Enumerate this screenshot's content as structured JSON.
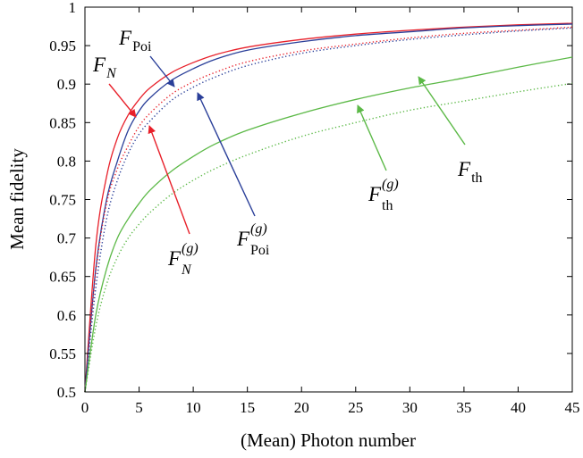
{
  "chart_data": {
    "type": "line",
    "xlabel": "(Mean) Photon number",
    "ylabel": "Mean fidelity",
    "xlim": [
      0,
      45
    ],
    "ylim": [
      0.5,
      1.0
    ],
    "xticks": [
      0,
      5,
      10,
      15,
      20,
      25,
      30,
      35,
      40,
      45
    ],
    "yticks": [
      0.5,
      0.55,
      0.6,
      0.65,
      0.7,
      0.75,
      0.8,
      0.85,
      0.9,
      0.95,
      1.0
    ],
    "xtick_labels": [
      "0",
      "5",
      "10",
      "15",
      "20",
      "25",
      "30",
      "35",
      "40",
      "45"
    ],
    "ytick_labels": [
      "0.5",
      "0.55",
      "0.6",
      "0.65",
      "0.7",
      "0.75",
      "0.8",
      "0.85",
      "0.9",
      "0.95",
      "1"
    ],
    "grid": false,
    "x": [
      0,
      1,
      2,
      3,
      4,
      5,
      6,
      8,
      10,
      12,
      15,
      20,
      25,
      30,
      35,
      40,
      45
    ],
    "series": [
      {
        "name": "F_N",
        "color": "#e8202a",
        "style": "solid",
        "values": [
          0.5,
          0.69,
          0.78,
          0.83,
          0.86,
          0.88,
          0.895,
          0.915,
          0.928,
          0.938,
          0.948,
          0.958,
          0.965,
          0.97,
          0.974,
          0.977,
          0.979
        ]
      },
      {
        "name": "F_Poi",
        "color": "#2a3f99",
        "style": "solid",
        "values": [
          0.5,
          0.66,
          0.75,
          0.8,
          0.84,
          0.865,
          0.882,
          0.905,
          0.92,
          0.932,
          0.944,
          0.955,
          0.963,
          0.968,
          0.973,
          0.976,
          0.978
        ]
      },
      {
        "name": "F_N^(g)",
        "color": "#e8202a",
        "style": "dotted",
        "values": [
          0.5,
          0.655,
          0.745,
          0.79,
          0.82,
          0.845,
          0.862,
          0.887,
          0.903,
          0.915,
          0.929,
          0.943,
          0.952,
          0.96,
          0.966,
          0.97,
          0.974
        ]
      },
      {
        "name": "F_Poi^(g)",
        "color": "#2a3f99",
        "style": "dotted",
        "values": [
          0.5,
          0.635,
          0.725,
          0.775,
          0.81,
          0.835,
          0.852,
          0.879,
          0.896,
          0.909,
          0.924,
          0.94,
          0.95,
          0.958,
          0.964,
          0.969,
          0.973
        ]
      },
      {
        "name": "F_th",
        "color": "#5cb947",
        "style": "solid",
        "values": [
          0.5,
          0.6,
          0.66,
          0.7,
          0.725,
          0.745,
          0.762,
          0.787,
          0.806,
          0.822,
          0.84,
          0.862,
          0.88,
          0.895,
          0.908,
          0.922,
          0.935
        ]
      },
      {
        "name": "F_th^(g)",
        "color": "#5cb947",
        "style": "dotted",
        "values": [
          0.5,
          0.585,
          0.64,
          0.675,
          0.7,
          0.718,
          0.733,
          0.757,
          0.775,
          0.79,
          0.808,
          0.832,
          0.85,
          0.866,
          0.878,
          0.89,
          0.901
        ]
      }
    ],
    "annotations": [
      {
        "main": "F",
        "sub": "N",
        "sup": "",
        "sub_italic": true,
        "color": "#e8202a"
      },
      {
        "main": "F",
        "sub": "Poi",
        "sup": "",
        "sub_italic": false,
        "color": "#2a3f99"
      },
      {
        "main": "F",
        "sub": "N",
        "sup": "(g)",
        "sub_italic": true,
        "color": "#e8202a"
      },
      {
        "main": "F",
        "sub": "Poi",
        "sup": "(g)",
        "sub_italic": false,
        "color": "#2a3f99"
      },
      {
        "main": "F",
        "sub": "th",
        "sup": "(g)",
        "sub_italic": false,
        "color": "#5cb947"
      },
      {
        "main": "F",
        "sub": "th",
        "sup": "",
        "sub_italic": false,
        "color": "#5cb947"
      }
    ]
  }
}
